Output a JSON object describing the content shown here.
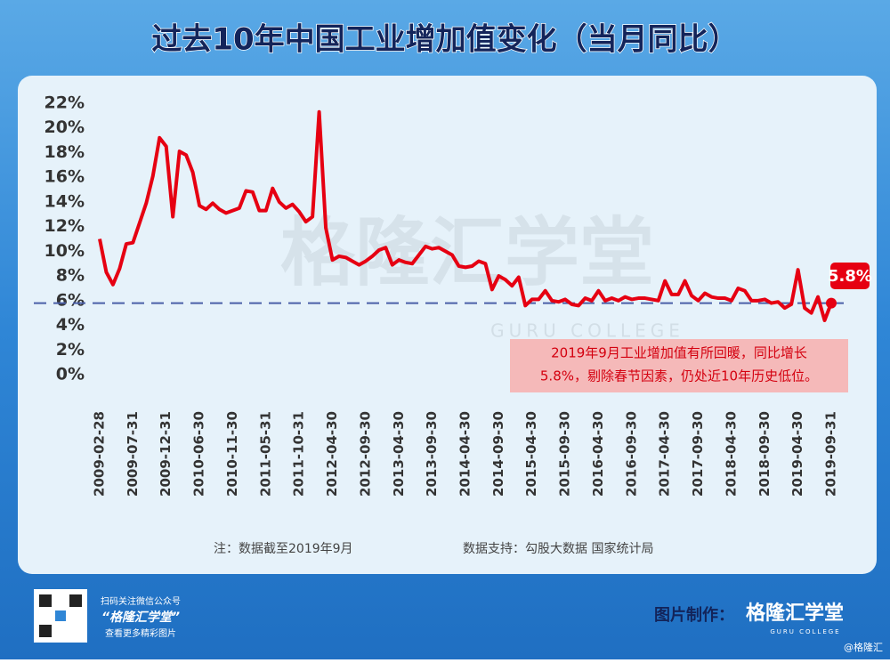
{
  "chart_data": {
    "type": "line",
    "title": "过去10年中国工业增加值变化（当月同比）",
    "categories": [
      "2009-02-28",
      null,
      null,
      null,
      null,
      "2009-07-31",
      null,
      null,
      null,
      null,
      "2009-12-31",
      null,
      null,
      null,
      null,
      "2010-06-30",
      null,
      null,
      null,
      null,
      "2010-11-30",
      null,
      null,
      null,
      null,
      "2011-05-31",
      null,
      null,
      null,
      null,
      "2011-10-31",
      null,
      null,
      null,
      null,
      "2012-04-30",
      null,
      null,
      null,
      null,
      "2012-09-30",
      null,
      null,
      null,
      null,
      "2013-04-30",
      null,
      null,
      null,
      null,
      "2013-09-30",
      null,
      null,
      null,
      null,
      "2014-04-30",
      null,
      null,
      null,
      null,
      "2014-09-30",
      null,
      null,
      null,
      null,
      "2015-04-30",
      null,
      null,
      null,
      null,
      "2015-09-30",
      null,
      null,
      null,
      null,
      "2016-04-30",
      null,
      null,
      null,
      null,
      "2016-09-30",
      null,
      null,
      null,
      null,
      "2017-04-30",
      null,
      null,
      null,
      null,
      "2017-09-30",
      null,
      null,
      null,
      null,
      "2018-04-30",
      null,
      null,
      null,
      null,
      "2018-09-30",
      null,
      null,
      null,
      null,
      "2019-04-30",
      null,
      null,
      null,
      null,
      "2019-09-31"
    ],
    "series": [
      {
        "name": "工业增加值当月同比",
        "color": "#e60012",
        "values": [
          11.0,
          8.3,
          7.3,
          8.6,
          10.6,
          10.7,
          12.3,
          13.9,
          16.1,
          19.2,
          18.5,
          12.8,
          18.1,
          17.8,
          16.4,
          13.7,
          13.4,
          13.9,
          13.4,
          13.1,
          13.3,
          13.5,
          14.9,
          14.8,
          13.3,
          13.3,
          15.1,
          14.0,
          13.5,
          13.8,
          13.2,
          12.4,
          12.8,
          21.3,
          11.9,
          9.3,
          9.6,
          9.5,
          9.2,
          8.9,
          9.2,
          9.6,
          10.1,
          10.3,
          8.9,
          9.3,
          9.1,
          9.0,
          9.7,
          10.4,
          10.2,
          10.3,
          10.0,
          9.7,
          8.8,
          8.7,
          8.8,
          9.2,
          9.0,
          6.9,
          8.0,
          7.7,
          7.2,
          7.9,
          5.6,
          6.1,
          6.1,
          6.8,
          6.0,
          5.9,
          6.1,
          5.7,
          5.6,
          6.2,
          6.0,
          6.8,
          6.0,
          6.2,
          6.0,
          6.3,
          6.1,
          6.2,
          6.2,
          6.1,
          6.0,
          7.6,
          6.5,
          6.5,
          7.6,
          6.4,
          6.0,
          6.6,
          6.3,
          6.2,
          6.2,
          6.0,
          7.0,
          6.8,
          6.0,
          6.0,
          6.1,
          5.8,
          5.9,
          5.4,
          5.7,
          8.5,
          5.4,
          5.0,
          6.3,
          4.4,
          5.8
        ]
      }
    ],
    "ylim": [
      0,
      22
    ],
    "yticks": [
      {
        "value": 0,
        "label": "0%"
      },
      {
        "value": 2,
        "label": "2%"
      },
      {
        "value": 4,
        "label": "4%"
      },
      {
        "value": 6,
        "label": "6%"
      },
      {
        "value": 8,
        "label": "8%"
      },
      {
        "value": 10,
        "label": "10%"
      },
      {
        "value": 12,
        "label": "12%"
      },
      {
        "value": 14,
        "label": "14%"
      },
      {
        "value": 16,
        "label": "16%"
      },
      {
        "value": 18,
        "label": "18%"
      },
      {
        "value": 20,
        "label": "20%"
      },
      {
        "value": 22,
        "label": "22%"
      }
    ],
    "reference_line": {
      "value": 5.8,
      "color": "#4a5fa8"
    },
    "end_label": {
      "value": 5.8,
      "label": "5.8%"
    },
    "annotation": [
      "2019年9月工业增加值有所回暖，同比增长",
      "5.8%，剔除春节因素，仍处近10年历史低位。"
    ],
    "watermark": "格隆汇学堂",
    "watermark_sub": "GURU COLLEGE",
    "note": "注：数据截至2019年9月",
    "source": "数据支持：勾股大数据  国家统计局"
  },
  "footer": {
    "qr_lines": [
      "扫码关注微信公众号",
      "“格隆汇学堂”",
      "查看更多精彩图片"
    ],
    "maker": "图片制作：",
    "brand": "格隆汇学堂",
    "brand_sub": "GURU COLLEGE",
    "credit": "@格隆汇"
  }
}
